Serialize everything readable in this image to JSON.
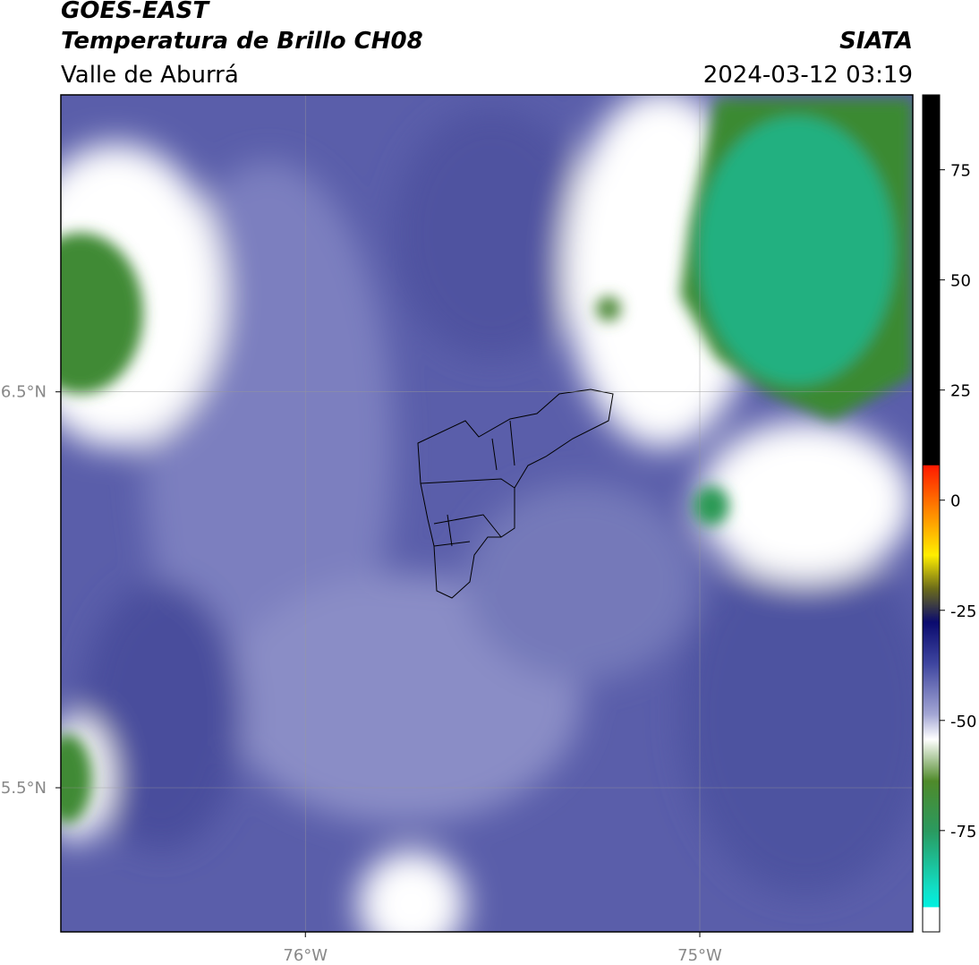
{
  "header": {
    "title": "GOES-EAST",
    "subtitle": "Temperatura de Brillo CH08",
    "region": "Valle de Aburrá",
    "source": "SIATA",
    "datetime": "2024-03-12 03:19"
  },
  "map": {
    "lat_lim": [
      5.136,
      7.25
    ],
    "lon_lim": [
      -76.62,
      -74.46
    ],
    "lat_ticks": [
      {
        "value": 6.5,
        "label": "6.5°N"
      },
      {
        "value": 5.5,
        "label": "5.5°N"
      }
    ],
    "lon_ticks": [
      {
        "value": -76,
        "label": "76°W"
      },
      {
        "value": -75,
        "label": "75°W"
      }
    ],
    "grid": true
  },
  "colorbar": {
    "lim": [
      -98,
      92
    ],
    "ticks": [
      75,
      50,
      25,
      0,
      -25,
      -50,
      -75
    ]
  }
}
